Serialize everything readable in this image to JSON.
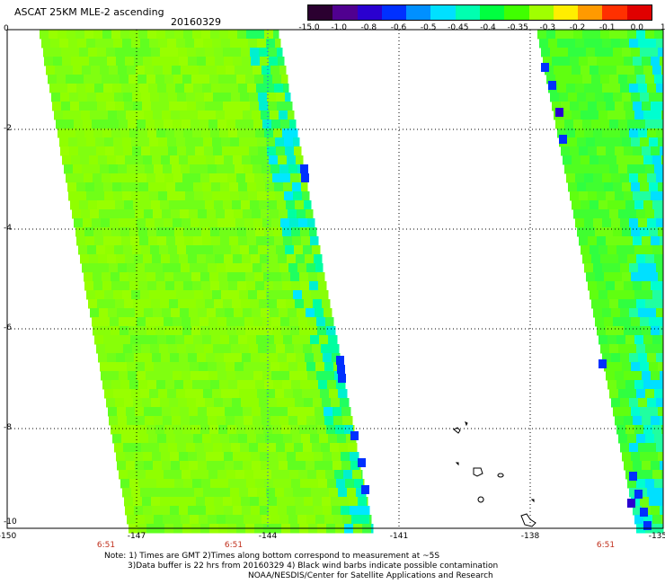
{
  "header": {
    "title": "ASCAT 25KM MLE-2 ascending",
    "date": "20160329"
  },
  "colorbar": {
    "labels": [
      "-15.0",
      "-1.0",
      "-0.8",
      "-0.6",
      "-0.5",
      "-0.45",
      "-0.4",
      "-0.35",
      "-0.3",
      "-0.2",
      "-0.1",
      "0.0",
      "1.0"
    ],
    "colors": [
      "#2b0030",
      "#500090",
      "#2a00d0",
      "#0030ff",
      "#0090ff",
      "#00e0ff",
      "#00ffb0",
      "#00ff40",
      "#40ff00",
      "#a0ff00",
      "#ffee00",
      "#ff9a00",
      "#ff3000",
      "#e00000"
    ]
  },
  "axes": {
    "y_ticks": [
      "0",
      "-2",
      "-4",
      "-6",
      "-8",
      "-10"
    ],
    "x_ticks": [
      "-150",
      "-147",
      "-144",
      "-141",
      "-138",
      "-135"
    ],
    "time_labels": [
      "6:51",
      "6:51",
      "6:51"
    ]
  },
  "swaths": [
    {
      "name": "west-swath",
      "dominant": "#90ff00",
      "edge": "#00ffc0",
      "speckle": "#60ff10"
    },
    {
      "name": "east-swath",
      "dominant": "#60ff10",
      "edge": "#00e0ff",
      "speckle": "#30ff30"
    }
  ],
  "notes": {
    "line1": "Note: 1) Times are GMT 2)Times along bottom correspond to measurement at ~5S",
    "line2": "3)Data buffer is 22 hrs from 20160329 4) Black wind barbs indicate possible contamination",
    "line3": "NOAA/NESDIS/Center for Satellite Applications and Research"
  }
}
